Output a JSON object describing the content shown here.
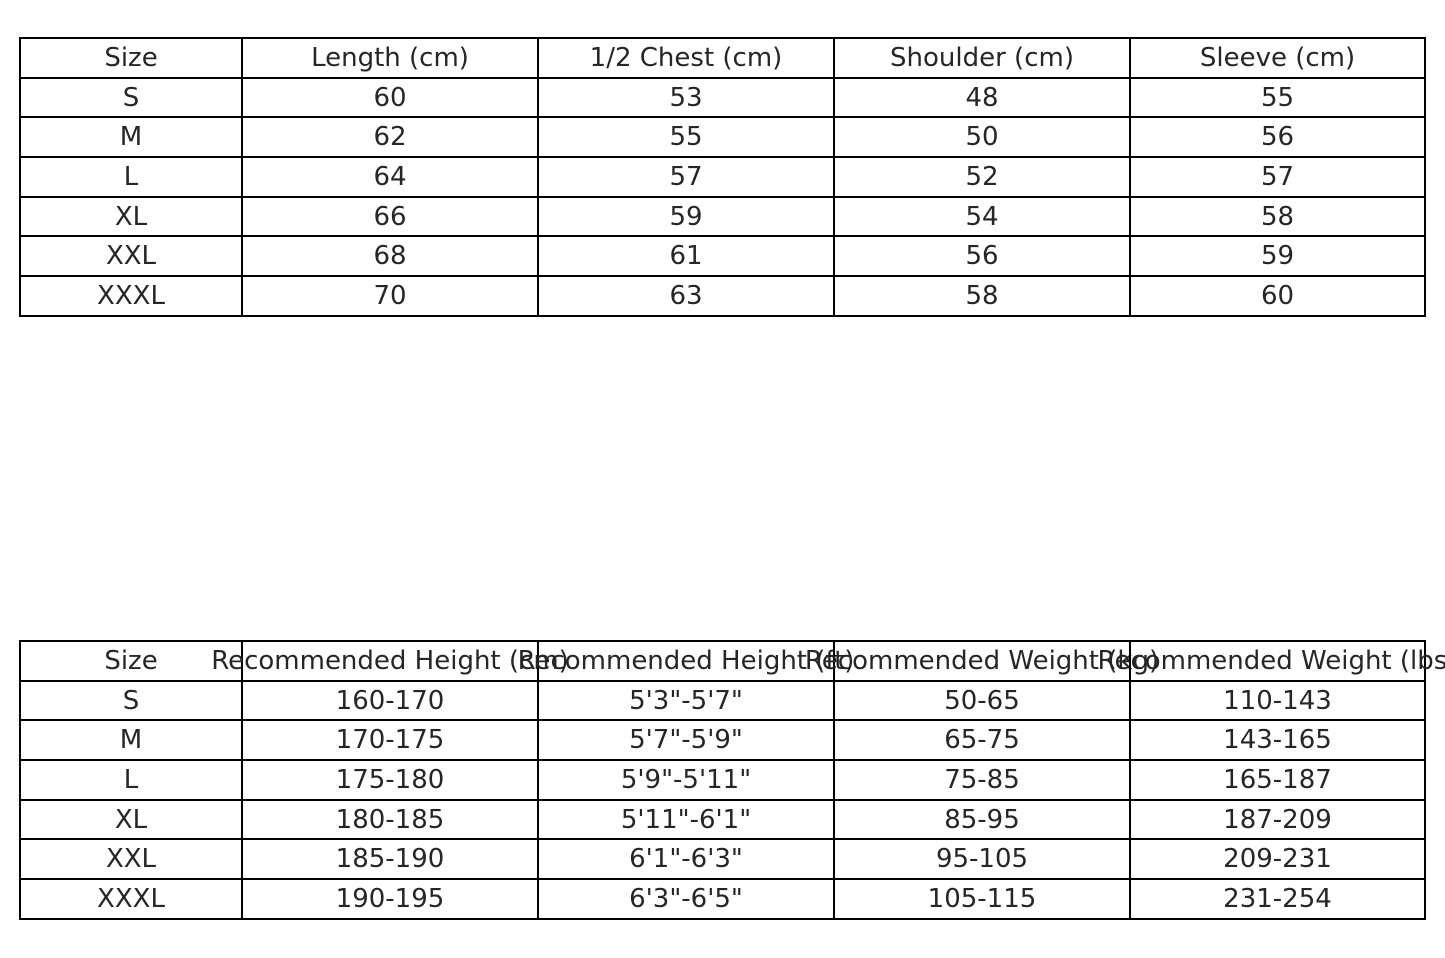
{
  "chart_data": [
    {
      "type": "table",
      "columns": [
        "Size",
        "Length (cm)",
        "1/2 Chest (cm)",
        "Shoulder (cm)",
        "Sleeve (cm)"
      ],
      "rows": [
        [
          "S",
          "60",
          "53",
          "48",
          "55"
        ],
        [
          "M",
          "62",
          "55",
          "50",
          "56"
        ],
        [
          "L",
          "64",
          "57",
          "52",
          "57"
        ],
        [
          "XL",
          "66",
          "59",
          "54",
          "58"
        ],
        [
          "XXL",
          "68",
          "61",
          "56",
          "59"
        ],
        [
          "XXXL",
          "70",
          "63",
          "58",
          "60"
        ]
      ]
    },
    {
      "type": "table",
      "columns": [
        "Size",
        "Recommended Height (cm)",
        "Recommended Height (ft)",
        "Recommended Weight (kg)",
        "Recommended Weight (lbs)"
      ],
      "rows": [
        [
          "S",
          "160-170",
          "5'3\"-5'7\"",
          "50-65",
          "110-143"
        ],
        [
          "M",
          "170-175",
          "5'7\"-5'9\"",
          "65-75",
          "143-165"
        ],
        [
          "L",
          "175-180",
          "5'9\"-5'11\"",
          "75-85",
          "165-187"
        ],
        [
          "XL",
          "180-185",
          "5'11\"-6'1\"",
          "85-95",
          "187-209"
        ],
        [
          "XXL",
          "185-190",
          "6'1\"-6'3\"",
          "95-105",
          "209-231"
        ],
        [
          "XXXL",
          "190-195",
          "6'3\"-6'5\"",
          "105-115",
          "231-254"
        ]
      ]
    }
  ]
}
